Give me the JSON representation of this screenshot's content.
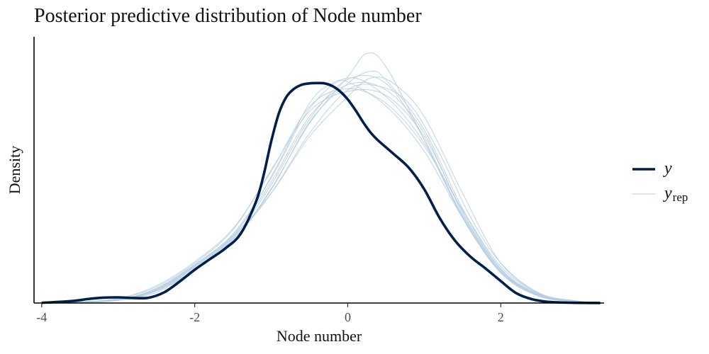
{
  "chart_data": {
    "type": "line",
    "title": "Posterior predictive distribution of Node number",
    "xlabel": "Node number",
    "ylabel": "Density",
    "xlim": [
      -4.1,
      3.35
    ],
    "ylim": [
      0,
      0.4
    ],
    "x_ticks": [
      -4,
      -2,
      0,
      2
    ],
    "x_tick_labels": [
      "-4",
      "-2",
      "0",
      "2"
    ],
    "grid": false,
    "legend_position": "right",
    "colors": {
      "y": "#011f4b",
      "yrep": "#b3cde0"
    },
    "legend": [
      {
        "key": "y",
        "label": "y",
        "subscript": ""
      },
      {
        "key": "yrep",
        "label": "y",
        "subscript": "rep"
      }
    ],
    "series": [
      {
        "name": "y",
        "x": [
          -4.0,
          -3.6,
          -3.4,
          -3.2,
          -3.0,
          -2.8,
          -2.6,
          -2.4,
          -2.2,
          -2.0,
          -1.8,
          -1.6,
          -1.4,
          -1.2,
          -1.1,
          -1.0,
          -0.9,
          -0.8,
          -0.7,
          -0.6,
          -0.5,
          -0.4,
          -0.3,
          -0.2,
          -0.1,
          0.0,
          0.1,
          0.2,
          0.3,
          0.4,
          0.6,
          0.8,
          1.0,
          1.2,
          1.4,
          1.6,
          1.8,
          2.0,
          2.2,
          2.4,
          2.6,
          2.8,
          3.0,
          3.3
        ],
        "y": [
          0.0003,
          0.003,
          0.006,
          0.008,
          0.0085,
          0.0075,
          0.008,
          0.016,
          0.032,
          0.05,
          0.066,
          0.082,
          0.104,
          0.152,
          0.192,
          0.243,
          0.285,
          0.31,
          0.322,
          0.328,
          0.33,
          0.3305,
          0.33,
          0.326,
          0.318,
          0.306,
          0.29,
          0.272,
          0.256,
          0.244,
          0.224,
          0.203,
          0.171,
          0.128,
          0.094,
          0.07,
          0.052,
          0.033,
          0.015,
          0.006,
          0.002,
          0.0008,
          0.0003,
          0.0001
        ]
      },
      {
        "name": "",
        "x": [
          -4.0,
          -3.5,
          -3.0,
          -2.5,
          -2.0,
          -1.5,
          -1.0,
          -0.5,
          0.0,
          0.5,
          1.0,
          1.5,
          2.0,
          2.5,
          3.0,
          3.3
        ],
        "y": [
          0.0003,
          0.0015,
          0.005,
          0.022,
          0.058,
          0.104,
          0.188,
          0.292,
          0.338,
          0.31,
          0.24,
          0.132,
          0.048,
          0.012,
          0.002,
          0.0004
        ]
      },
      {
        "name": "",
        "x": [
          -4.0,
          -3.5,
          -3.0,
          -2.5,
          -2.0,
          -1.5,
          -1.0,
          -0.5,
          0.0,
          0.3,
          0.5,
          1.0,
          1.5,
          2.0,
          2.5,
          3.0,
          3.3
        ],
        "y": [
          0.0002,
          0.001,
          0.004,
          0.016,
          0.05,
          0.096,
          0.17,
          0.272,
          0.33,
          0.348,
          0.335,
          0.26,
          0.142,
          0.052,
          0.013,
          0.002,
          0.0004
        ]
      },
      {
        "name": "",
        "x": [
          -4.0,
          -3.5,
          -3.0,
          -2.5,
          -2.0,
          -1.5,
          -1.0,
          -0.5,
          0.0,
          0.3,
          0.6,
          1.0,
          1.5,
          2.0,
          2.5,
          3.0,
          3.3
        ],
        "y": [
          0.0002,
          0.0012,
          0.0045,
          0.02,
          0.055,
          0.1,
          0.165,
          0.25,
          0.31,
          0.338,
          0.33,
          0.28,
          0.165,
          0.06,
          0.015,
          0.003,
          0.0005
        ]
      },
      {
        "name": "",
        "x": [
          -4.0,
          -3.5,
          -3.0,
          -2.5,
          -2.0,
          -1.5,
          -1.0,
          -0.5,
          0.0,
          0.25,
          0.5,
          1.0,
          1.5,
          2.0,
          2.5,
          3.0,
          3.3
        ],
        "y": [
          0.0002,
          0.001,
          0.004,
          0.018,
          0.052,
          0.092,
          0.172,
          0.27,
          0.34,
          0.375,
          0.355,
          0.245,
          0.128,
          0.045,
          0.01,
          0.002,
          0.0003
        ]
      },
      {
        "name": "",
        "x": [
          -4.0,
          -3.5,
          -3.0,
          -2.5,
          -2.0,
          -1.5,
          -1.0,
          -0.5,
          0.0,
          0.5,
          1.0,
          1.5,
          2.0,
          2.5,
          3.0,
          3.3
        ],
        "y": [
          0.0004,
          0.002,
          0.007,
          0.026,
          0.062,
          0.112,
          0.198,
          0.295,
          0.322,
          0.3,
          0.236,
          0.14,
          0.055,
          0.014,
          0.003,
          0.0005
        ]
      },
      {
        "name": "",
        "x": [
          -4.0,
          -3.5,
          -3.0,
          -2.5,
          -2.0,
          -1.5,
          -1.0,
          -0.5,
          0.0,
          0.5,
          1.0,
          1.5,
          2.0,
          2.5,
          3.0,
          3.3
        ],
        "y": [
          0.0003,
          0.0018,
          0.0065,
          0.024,
          0.06,
          0.11,
          0.2,
          0.288,
          0.318,
          0.312,
          0.25,
          0.138,
          0.05,
          0.012,
          0.002,
          0.0004
        ]
      },
      {
        "name": "",
        "x": [
          -4.0,
          -3.5,
          -3.0,
          -2.5,
          -2.0,
          -1.5,
          -1.0,
          -0.5,
          -0.2,
          0.0,
          0.5,
          1.0,
          1.5,
          2.0,
          2.5,
          3.0,
          3.3
        ],
        "y": [
          0.0003,
          0.0016,
          0.0055,
          0.021,
          0.056,
          0.1,
          0.19,
          0.3,
          0.33,
          0.332,
          0.296,
          0.228,
          0.128,
          0.046,
          0.011,
          0.002,
          0.0003
        ]
      },
      {
        "name": "",
        "x": [
          -4.0,
          -3.5,
          -3.0,
          -2.5,
          -2.0,
          -1.5,
          -1.0,
          -0.5,
          0.0,
          0.5,
          1.0,
          1.5,
          2.0,
          2.5,
          3.0,
          3.3
        ],
        "y": [
          0.0002,
          0.0012,
          0.0048,
          0.019,
          0.054,
          0.098,
          0.178,
          0.276,
          0.336,
          0.33,
          0.246,
          0.13,
          0.047,
          0.011,
          0.002,
          0.0003
        ]
      },
      {
        "name": "",
        "x": [
          -4.0,
          -3.5,
          -3.0,
          -2.5,
          -2.0,
          -1.5,
          -1.0,
          -0.5,
          0.0,
          0.5,
          1.0,
          1.5,
          2.0,
          2.5,
          3.0,
          3.3
        ],
        "y": [
          0.0003,
          0.0014,
          0.0052,
          0.021,
          0.057,
          0.102,
          0.182,
          0.28,
          0.328,
          0.32,
          0.255,
          0.135,
          0.05,
          0.012,
          0.002,
          0.0004
        ]
      },
      {
        "name": "",
        "x": [
          -4.0,
          -3.5,
          -3.0,
          -2.5,
          -2.0,
          -1.5,
          -1.0,
          -0.5,
          0.0,
          0.4,
          0.8,
          1.2,
          1.6,
          2.0,
          2.5,
          3.0,
          3.3
        ],
        "y": [
          0.0002,
          0.0012,
          0.0045,
          0.018,
          0.05,
          0.095,
          0.165,
          0.255,
          0.32,
          0.326,
          0.3,
          0.225,
          0.13,
          0.06,
          0.015,
          0.003,
          0.0005
        ]
      }
    ]
  }
}
